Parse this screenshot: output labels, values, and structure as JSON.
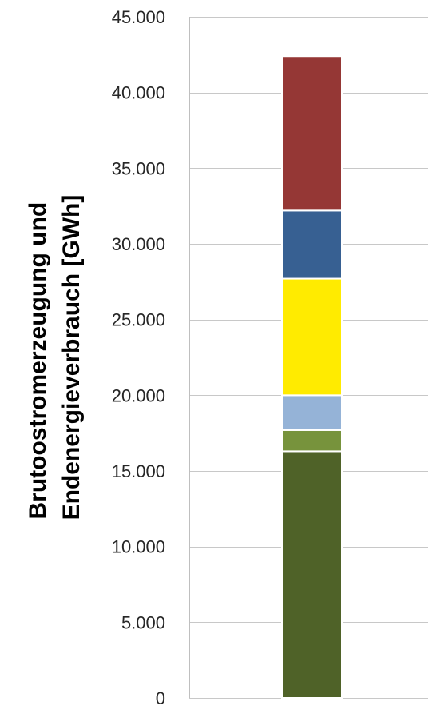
{
  "chart_data": {
    "type": "bar",
    "stacked": true,
    "title": "",
    "xlabel": "",
    "ylabel_lines": [
      "Brutoostromerzeugung und",
      "Endenergieverbrauch [GWh]"
    ],
    "ylim": [
      0,
      45000
    ],
    "ytick_values": [
      0,
      5000,
      10000,
      15000,
      20000,
      25000,
      30000,
      35000,
      40000,
      45000
    ],
    "ytick_labels": [
      "0",
      "5.000",
      "10.000",
      "15.000",
      "20.000",
      "25.000",
      "30.000",
      "35.000",
      "40.000",
      "45.000"
    ],
    "grid": true,
    "legend": "none",
    "categories": [
      ""
    ],
    "series": [
      {
        "values": [
          16300
        ],
        "color": "#4f6228"
      },
      {
        "values": [
          1400
        ],
        "color": "#77933c"
      },
      {
        "values": [
          2300
        ],
        "color": "#95b3d7"
      },
      {
        "values": [
          7700
        ],
        "color": "#ffeb00"
      },
      {
        "values": [
          4500
        ],
        "color": "#376092"
      },
      {
        "values": [
          10200
        ],
        "color": "#953735"
      }
    ]
  }
}
